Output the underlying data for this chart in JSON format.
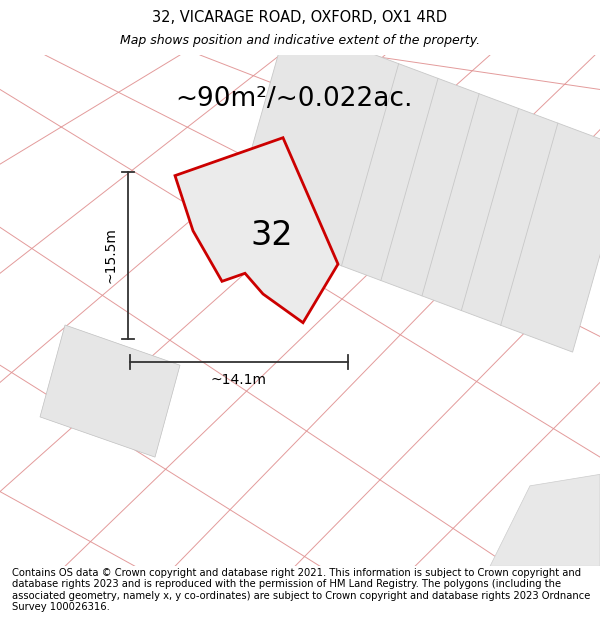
{
  "title": "32, VICARAGE ROAD, OXFORD, OX1 4RD",
  "subtitle": "Map shows position and indicative extent of the property.",
  "area_label": "~90m²/~0.022ac.",
  "number_label": "32",
  "width_label": "~14.1m",
  "height_label": "~15.5m",
  "footer": "Contains OS data © Crown copyright and database right 2021. This information is subject to Crown copyright and database rights 2023 and is reproduced with the permission of HM Land Registry. The polygons (including the associated geometry, namely x, y co-ordinates) are subject to Crown copyright and database rights 2023 Ordnance Survey 100026316.",
  "title_fontsize": 10.5,
  "subtitle_fontsize": 9,
  "area_fontsize": 19,
  "number_fontsize": 24,
  "dim_fontsize": 10,
  "footer_fontsize": 7.2,
  "plot_fill": "#ececec",
  "plot_edge": "#cc0000",
  "grid_fill": "#e8e8e8",
  "grid_edge": "#d0d0d0",
  "pink_line_color": "#e09090",
  "dim_color": "#333333"
}
